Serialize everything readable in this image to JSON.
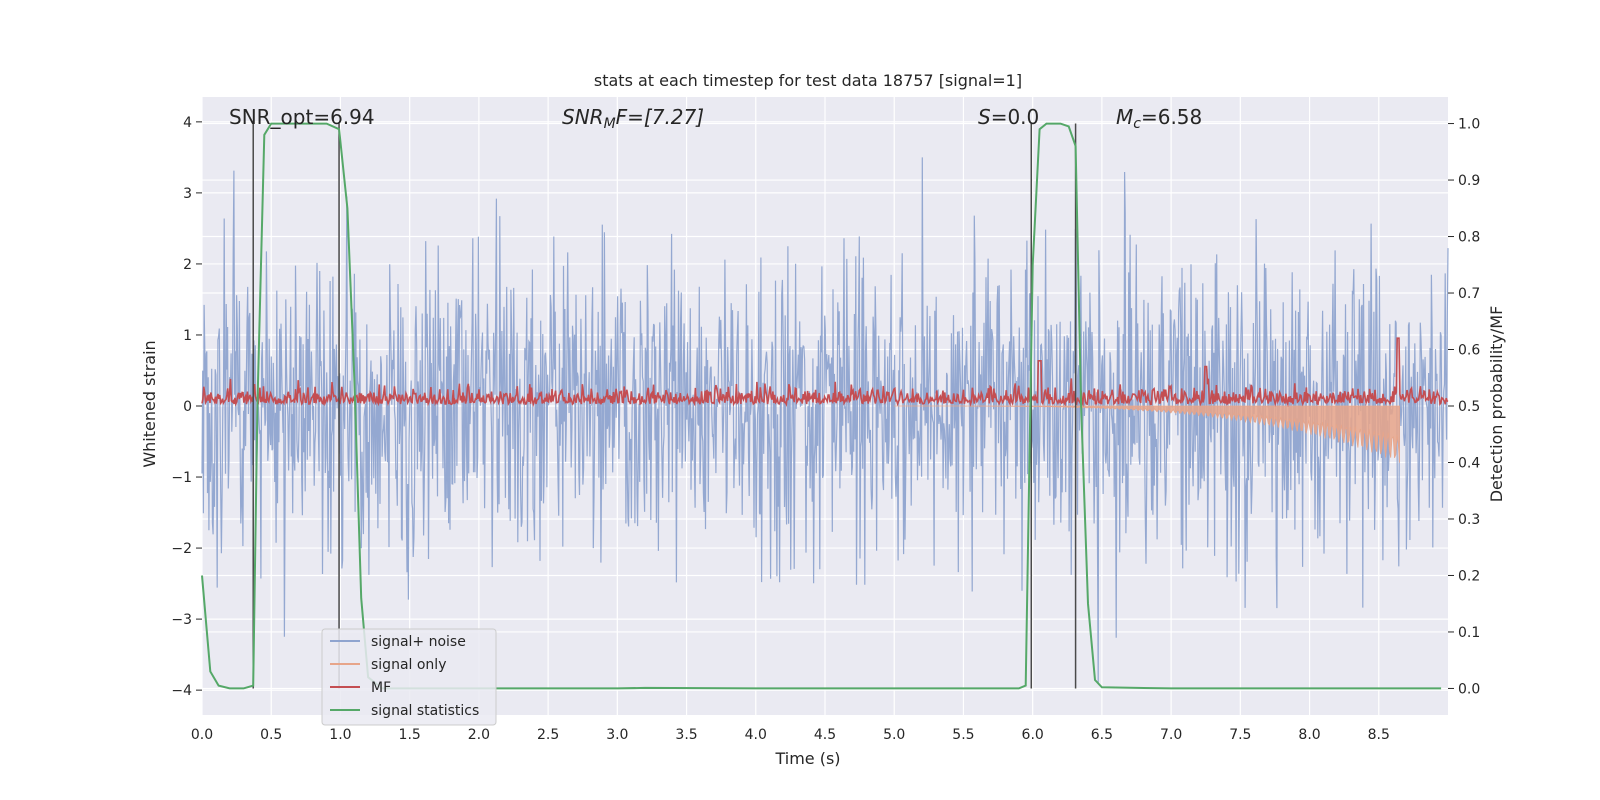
{
  "chart_data": {
    "type": "line",
    "title": "stats at each timestep for test data 18757 [signal=1]",
    "xlabel": "Time (s)",
    "ylabel_left": "Whitened strain",
    "ylabel_right": "Detection probability/MF",
    "xlim": [
      0.0,
      9.0
    ],
    "ylim_left": [
      -4.35,
      4.35
    ],
    "ylim_right": [
      -0.047,
      1.047
    ],
    "x_ticks": [
      "0.0",
      "0.5",
      "1.0",
      "1.5",
      "2.0",
      "2.5",
      "3.0",
      "3.5",
      "4.0",
      "4.5",
      "5.0",
      "5.5",
      "6.0",
      "6.5",
      "7.0",
      "7.5",
      "8.0",
      "8.5"
    ],
    "x_tick_values": [
      0.0,
      0.5,
      1.0,
      1.5,
      2.0,
      2.5,
      3.0,
      3.5,
      4.0,
      4.5,
      5.0,
      5.5,
      6.0,
      6.5,
      7.0,
      7.5,
      8.0,
      8.5
    ],
    "y_left_ticks": [
      "4",
      "3",
      "2",
      "1",
      "0",
      "−1",
      "−2",
      "−3",
      "−4"
    ],
    "y_left_tick_values": [
      4,
      3,
      2,
      1,
      0,
      -1,
      -2,
      -3,
      -4
    ],
    "y_right_ticks": [
      "1.0",
      "0.9",
      "0.8",
      "0.7",
      "0.6",
      "0.5",
      "0.4",
      "0.3",
      "0.2",
      "0.1",
      "0.0"
    ],
    "y_right_tick_values": [
      1.0,
      0.9,
      0.8,
      0.7,
      0.6,
      0.5,
      0.4,
      0.3,
      0.2,
      0.1,
      0.0
    ],
    "annotations": {
      "snr_opt": "SNR_opt=6.94",
      "snr_mf_main": "SNR",
      "snr_mf_sub": "M",
      "snr_mf_rest": "F=[7.27]",
      "s_main": "S",
      "s_rest": "=0.0",
      "mc_main": "M",
      "mc_sub": "c",
      "mc_rest": "=6.58"
    },
    "vertical_markers": [
      0.37,
      0.99,
      5.99,
      6.31
    ],
    "legend": {
      "placement": "lower-left",
      "entries": [
        {
          "label": "signal+ noise",
          "color": "#8fa4cf"
        },
        {
          "label": "signal only",
          "color": "#e7a58a"
        },
        {
          "label": "MF",
          "color": "#c44e52"
        },
        {
          "label": "signal statistics",
          "color": "#55a868"
        }
      ]
    },
    "series": [
      {
        "name": "signal+ noise",
        "axis": "left",
        "color": "#8fa4cf",
        "description_envelope": "dense noise ~N(0,1), peaks about ±3.3"
      },
      {
        "name": "signal only",
        "axis": "left",
        "color": "#e7a58a",
        "chirp_start": 5.0,
        "merger": 8.65,
        "peak_amplitude": -0.8
      },
      {
        "name": "MF",
        "axis": "right",
        "color": "#c44e52",
        "baseline": 0.52,
        "spikes": [
          [
            6.05,
            0.58
          ],
          [
            7.25,
            0.57
          ],
          [
            8.64,
            0.62
          ]
        ]
      },
      {
        "name": "signal statistics",
        "axis": "right",
        "color": "#55a868",
        "x": [
          0.0,
          0.06,
          0.12,
          0.2,
          0.3,
          0.37,
          0.4,
          0.45,
          0.5,
          0.6,
          0.7,
          0.8,
          0.9,
          0.99,
          1.05,
          1.1,
          1.15,
          1.2,
          1.3,
          1.5,
          2.0,
          3.0,
          3.2,
          4.0,
          5.0,
          5.9,
          5.95,
          6.0,
          6.05,
          6.1,
          6.2,
          6.26,
          6.31,
          6.35,
          6.4,
          6.45,
          6.5,
          7.0,
          8.0,
          8.95
        ],
        "y": [
          0.2,
          0.03,
          0.005,
          0.0,
          0.0,
          0.005,
          0.5,
          0.98,
          1.0,
          1.0,
          1.0,
          1.0,
          1.0,
          0.99,
          0.85,
          0.55,
          0.16,
          0.02,
          0.0,
          0.0,
          0.0,
          0.0,
          0.001,
          0.0,
          0.0,
          0.0,
          0.005,
          0.75,
          0.99,
          1.0,
          1.0,
          0.995,
          0.96,
          0.5,
          0.15,
          0.015,
          0.002,
          0.0,
          0.0,
          0.0
        ]
      }
    ]
  }
}
